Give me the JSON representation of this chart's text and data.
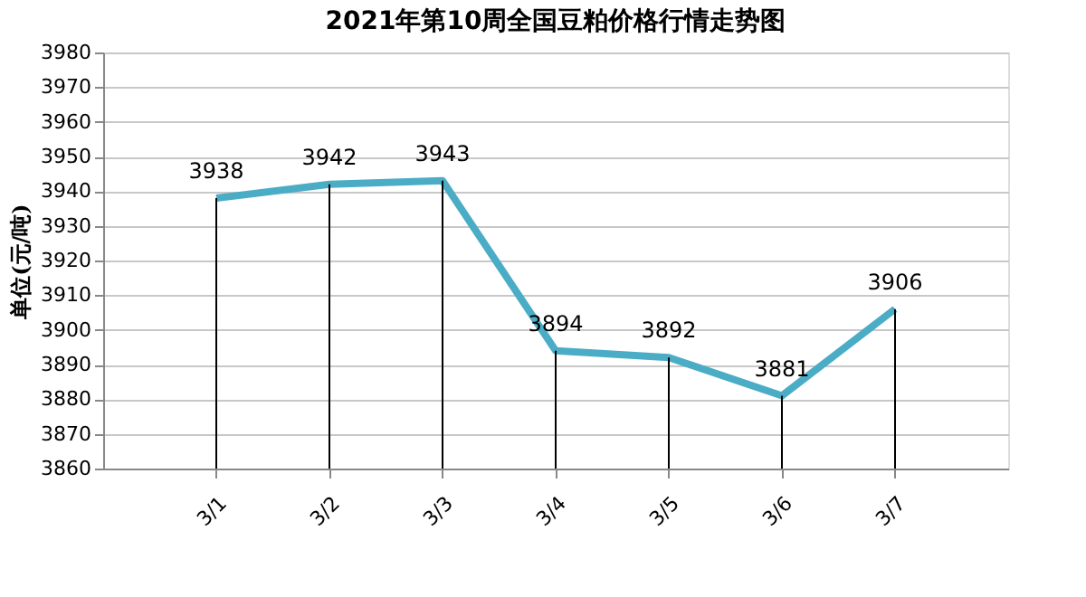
{
  "chart_data": {
    "type": "line",
    "title": "2021年第10周全国豆粕价格行情走势图",
    "ylabel": "单位(元/吨)",
    "categories": [
      "3/1",
      "3/2",
      "3/3",
      "3/4",
      "3/5",
      "3/6",
      "3/7"
    ],
    "series": [
      {
        "color": "#4bacc6",
        "values": [
          3938,
          3942,
          3943,
          3894,
          3892,
          3881,
          3906
        ]
      }
    ],
    "ylim": [
      3860,
      3980
    ],
    "yticks": [
      3860,
      3870,
      3880,
      3890,
      3900,
      3910,
      3920,
      3930,
      3940,
      3950,
      3960,
      3970,
      3980
    ],
    "grid": "y",
    "data_labels": true,
    "marker": "none",
    "line_style": "solid"
  }
}
